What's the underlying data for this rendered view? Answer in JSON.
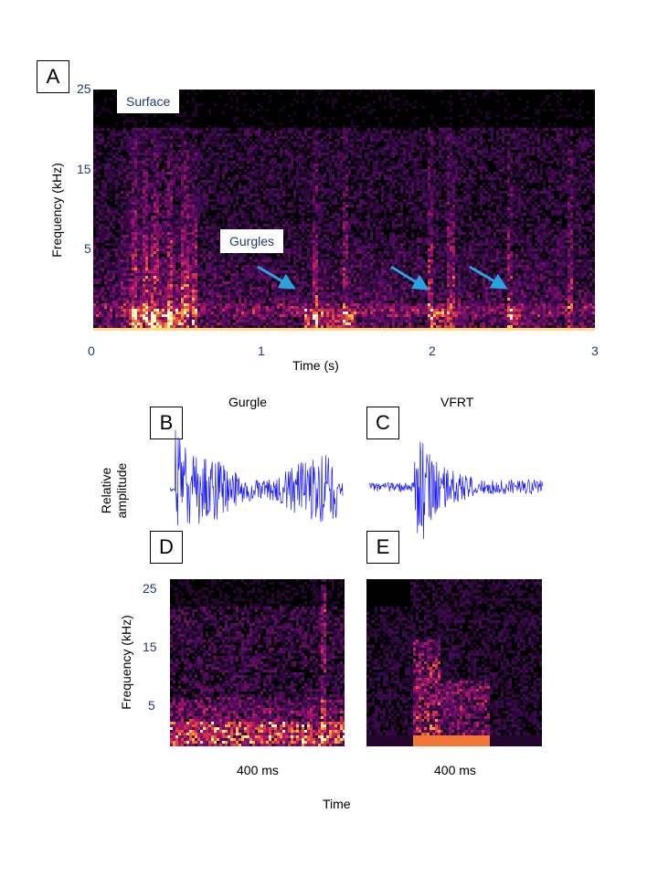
{
  "panels": {
    "A": {
      "letter": "A"
    },
    "B": {
      "letter": "B"
    },
    "C": {
      "letter": "C"
    },
    "D": {
      "letter": "D"
    },
    "E": {
      "letter": "E"
    }
  },
  "spectrogram_main": {
    "ylabel": "Frequency  (kHz)",
    "xlabel": "Time (s)",
    "yticks": [
      "25",
      "15",
      "5"
    ],
    "xticks": [
      "0",
      "1",
      "2",
      "3"
    ],
    "surface_label": "Surface",
    "gurgles_label": "Gurgles",
    "arrow_color": "#29a3e0"
  },
  "waveforms": {
    "ylabel_line1": "Relative",
    "ylabel_line2": "amplitude",
    "gurgle_title": "Gurgle",
    "vfrt_title": "VFRT",
    "color": "#1a1aff"
  },
  "spectrogram_small": {
    "ylabel": "Frequency  (kHz)",
    "yticks": [
      "25",
      "15",
      "5"
    ],
    "d_duration": "400 ms",
    "e_duration": "400 ms",
    "xlabel": "Time"
  },
  "chart_data": [
    {
      "type": "heatmap",
      "panel": "A",
      "title": "",
      "xlabel": "Time (s)",
      "ylabel": "Frequency  (kHz)",
      "xlim": [
        0,
        3
      ],
      "ylim": [
        0,
        25
      ],
      "xticks": [
        0,
        1,
        2,
        3
      ],
      "yticks": [
        5,
        15,
        25
      ],
      "annotations": [
        "Surface",
        "Gurgles"
      ],
      "gurgle_times_s": [
        1.2,
        2.0,
        2.5
      ]
    },
    {
      "type": "line",
      "panel": "B",
      "title": "Gurgle",
      "ylabel": "Relative amplitude"
    },
    {
      "type": "line",
      "panel": "C",
      "title": "VFRT",
      "ylabel": "Relative amplitude"
    },
    {
      "type": "heatmap",
      "panel": "D",
      "xlabel": "400 ms",
      "ylabel": "Frequency  (kHz)",
      "ylim": [
        0,
        25
      ],
      "yticks": [
        5,
        15,
        25
      ]
    },
    {
      "type": "heatmap",
      "panel": "E",
      "xlabel": "400 ms",
      "ylim": [
        0,
        25
      ]
    }
  ]
}
